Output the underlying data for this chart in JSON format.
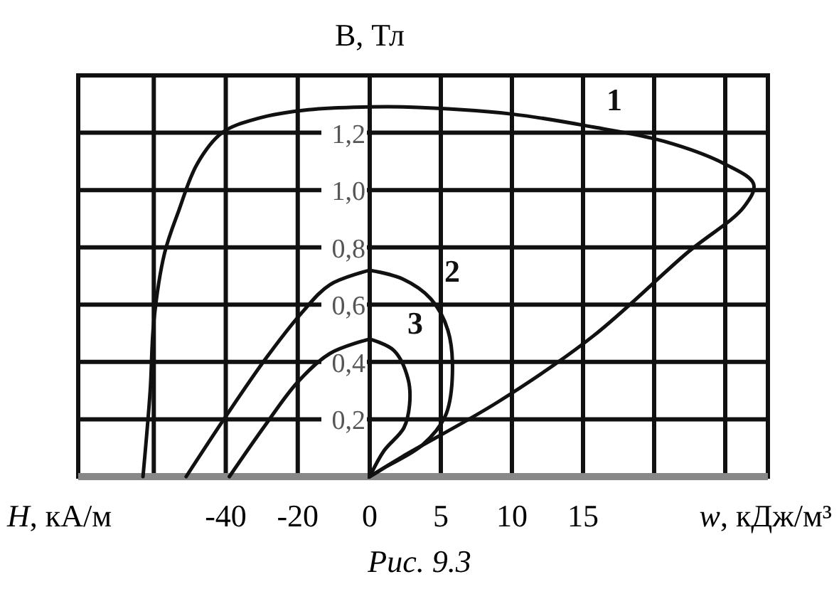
{
  "chart_data": [
    {
      "type": "line",
      "xlabel": "H, кА/м",
      "ylabel": "B, Тл",
      "xlim": [
        -81,
        0
      ],
      "xticks": [
        {
          "value": -60,
          "label": null
        },
        -40,
        -20,
        0
      ],
      "ylim": [
        0,
        1.4
      ],
      "yticks": [
        {
          "value": 0.2,
          "label": "0,2"
        },
        {
          "value": 0.4,
          "label": "0,4"
        },
        {
          "value": 0.6,
          "label": "0,6"
        },
        {
          "value": 0.8,
          "label": "0,8"
        },
        {
          "value": 1.0,
          "label": "1,0"
        },
        {
          "value": 1.2,
          "label": "1,2"
        }
      ],
      "grid": true,
      "tick_labels": true,
      "series": [
        {
          "color": "#111111",
          "x": [
            -63,
            -61,
            -60,
            -57,
            -53,
            -48,
            -41,
            -31,
            -17,
            0
          ],
          "values": [
            0,
            0.3,
            0.54,
            0.78,
            0.93,
            1.09,
            1.2,
            1.25,
            1.28,
            1.29
          ]
        },
        {
          "color": "#111111",
          "x": [
            -51,
            -40,
            -29,
            -19,
            -11,
            0
          ],
          "values": [
            0,
            0.21,
            0.41,
            0.57,
            0.67,
            0.72
          ]
        },
        {
          "color": "#111111",
          "x": [
            -39,
            -29,
            -20,
            -11,
            0
          ],
          "values": [
            0,
            0.18,
            0.33,
            0.43,
            0.48
          ]
        }
      ]
    },
    {
      "type": "line",
      "xlabel": "w, кДж/м³",
      "xlim": [
        0,
        28
      ],
      "xticks": [
        5,
        10,
        15,
        {
          "value": 20,
          "label": null
        },
        {
          "value": 25,
          "label": null
        }
      ],
      "ylim": [
        0,
        1.4
      ],
      "yticks": [
        0.2,
        0.4,
        0.6,
        0.8,
        1.0,
        1.2
      ],
      "grid": true,
      "tick_labels": "x",
      "annotations": [
        "Рис. 9.3"
      ],
      "series": [
        {
          "name": "1",
          "color": "#111111",
          "x": [
            0,
            2.3,
            10,
            15.7,
            20.7,
            25,
            27,
            26.3,
            22.3,
            15.7,
            9,
            2.3,
            0
          ],
          "values": [
            1.29,
            1.29,
            1.265,
            1.22,
            1.17,
            1.09,
            1.02,
            0.94,
            0.78,
            0.49,
            0.26,
            0.07,
            0
          ]
        },
        {
          "name": "2",
          "color": "#111111",
          "x": [
            0,
            2.3,
            4.3,
            5.5,
            5.8,
            5.3,
            3.7,
            1,
            0
          ],
          "values": [
            0.72,
            0.69,
            0.62,
            0.51,
            0.34,
            0.21,
            0.11,
            0.03,
            0
          ]
        },
        {
          "name": "3",
          "color": "#111111",
          "x": [
            0,
            1.7,
            2.7,
            2.8,
            2.4,
            1,
            0
          ],
          "values": [
            0.48,
            0.44,
            0.34,
            0.25,
            0.17,
            0.09,
            0
          ]
        }
      ]
    }
  ]
}
